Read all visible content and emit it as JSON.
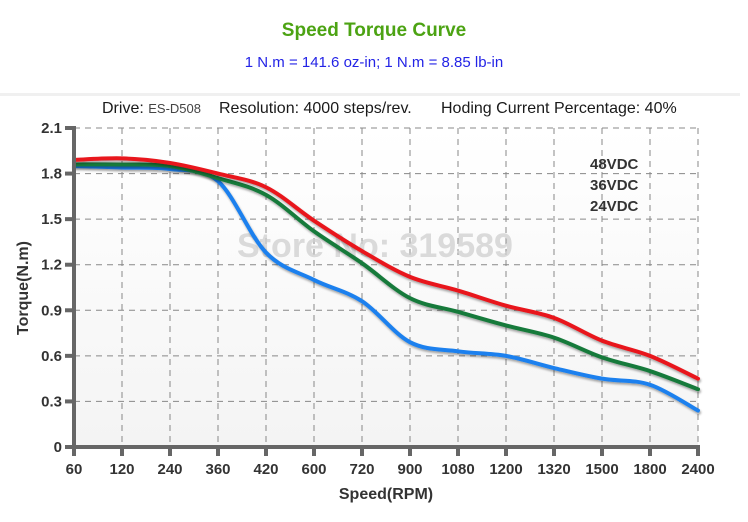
{
  "header": {
    "title": "Speed Torque Curve",
    "subtitle": "1 N.m = 141.6 oz-in; 1 N.m = 8.85 lb-in"
  },
  "info": {
    "drive_label": "Drive:",
    "drive_value": "ES-D508",
    "resolution": "Resolution: 4000 steps/rev.",
    "holding_current": "Hoding Current Percentage: 40%"
  },
  "watermark": "Store No: 319589",
  "chart_data": {
    "type": "line",
    "title": "Speed Torque Curve",
    "xlabel": "Speed(RPM)",
    "ylabel": "Torque(N.m)",
    "categories": [
      "60",
      "120",
      "240",
      "360",
      "420",
      "600",
      "720",
      "900",
      "1080",
      "1200",
      "1320",
      "1500",
      "1800",
      "2400"
    ],
    "yticks": [
      "0",
      "0.3",
      "0.6",
      "0.9",
      "1.2",
      "1.5",
      "1.8",
      "2.1"
    ],
    "ylim": [
      0,
      2.1
    ],
    "grid": true,
    "legend_position": "top-right",
    "series": [
      {
        "name": "48VDC",
        "color": "#e8141b",
        "values": [
          1.89,
          1.9,
          1.87,
          1.8,
          1.71,
          1.49,
          1.29,
          1.12,
          1.03,
          0.93,
          0.85,
          0.7,
          0.6,
          0.45
        ]
      },
      {
        "name": "36VDC",
        "color": "#157a3a",
        "values": [
          1.86,
          1.86,
          1.85,
          1.77,
          1.66,
          1.42,
          1.21,
          0.98,
          0.89,
          0.8,
          0.72,
          0.59,
          0.5,
          0.38
        ]
      },
      {
        "name": "24VDC",
        "color": "#1a80ee",
        "values": [
          1.85,
          1.84,
          1.83,
          1.75,
          1.28,
          1.1,
          0.96,
          0.69,
          0.63,
          0.6,
          0.52,
          0.45,
          0.41,
          0.24
        ]
      }
    ]
  }
}
